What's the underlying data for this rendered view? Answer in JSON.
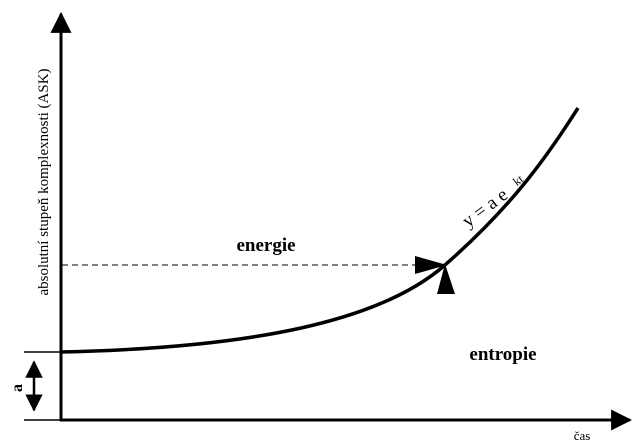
{
  "y_axis_label": "absolutní stupeň komplexnosti (ASK)",
  "x_axis_label": "čas",
  "regions": {
    "upper": "energie",
    "lower": "entropie"
  },
  "offset_label": "a",
  "formula": {
    "base": "y = a e",
    "exponent": "kt"
  }
}
